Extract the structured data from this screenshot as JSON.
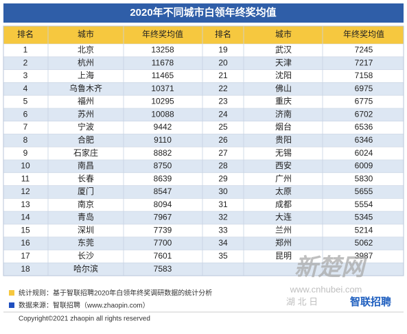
{
  "title": "2020年不同城市白领年终奖均值",
  "table": {
    "columns": [
      "排名",
      "城市",
      "年终奖均值"
    ],
    "rows": [
      [
        1,
        "北京",
        13258
      ],
      [
        2,
        "杭州",
        11678
      ],
      [
        3,
        "上海",
        11465
      ],
      [
        4,
        "乌鲁木齐",
        10371
      ],
      [
        5,
        "福州",
        10295
      ],
      [
        6,
        "苏州",
        10088
      ],
      [
        7,
        "宁波",
        9442
      ],
      [
        8,
        "合肥",
        9110
      ],
      [
        9,
        "石家庄",
        8882
      ],
      [
        10,
        "南昌",
        8750
      ],
      [
        11,
        "长春",
        8639
      ],
      [
        12,
        "厦门",
        8547
      ],
      [
        13,
        "南京",
        8094
      ],
      [
        14,
        "青岛",
        7967
      ],
      [
        15,
        "深圳",
        7739
      ],
      [
        16,
        "东莞",
        7700
      ],
      [
        17,
        "长沙",
        7601
      ],
      [
        18,
        "哈尔滨",
        7583
      ],
      [
        19,
        "武汉",
        7245
      ],
      [
        20,
        "天津",
        7217
      ],
      [
        21,
        "沈阳",
        7158
      ],
      [
        22,
        "佛山",
        6975
      ],
      [
        23,
        "重庆",
        6775
      ],
      [
        24,
        "济南",
        6702
      ],
      [
        25,
        "烟台",
        6536
      ],
      [
        26,
        "贵阳",
        6346
      ],
      [
        27,
        "无锡",
        6024
      ],
      [
        28,
        "西安",
        6009
      ],
      [
        29,
        "广州",
        5830
      ],
      [
        30,
        "太原",
        5655
      ],
      [
        31,
        "成都",
        5554
      ],
      [
        32,
        "大连",
        5345
      ],
      [
        33,
        "兰州",
        5214
      ],
      [
        34,
        "郑州",
        5062
      ],
      [
        35,
        "昆明",
        3987
      ]
    ]
  },
  "notes": [
    "统计规则：基于智联招聘2020年白领年终奖调研数据的统计分析",
    "数据来源：智联招聘（www.zhaopin.com）"
  ],
  "copyright": "Copyright©2021 zhaopin all rights reserved",
  "watermark": {
    "logo": "新楚网",
    "url": "www.cnhubei.com",
    "paper": "湖 北 日",
    "brand": "智联招聘"
  }
}
